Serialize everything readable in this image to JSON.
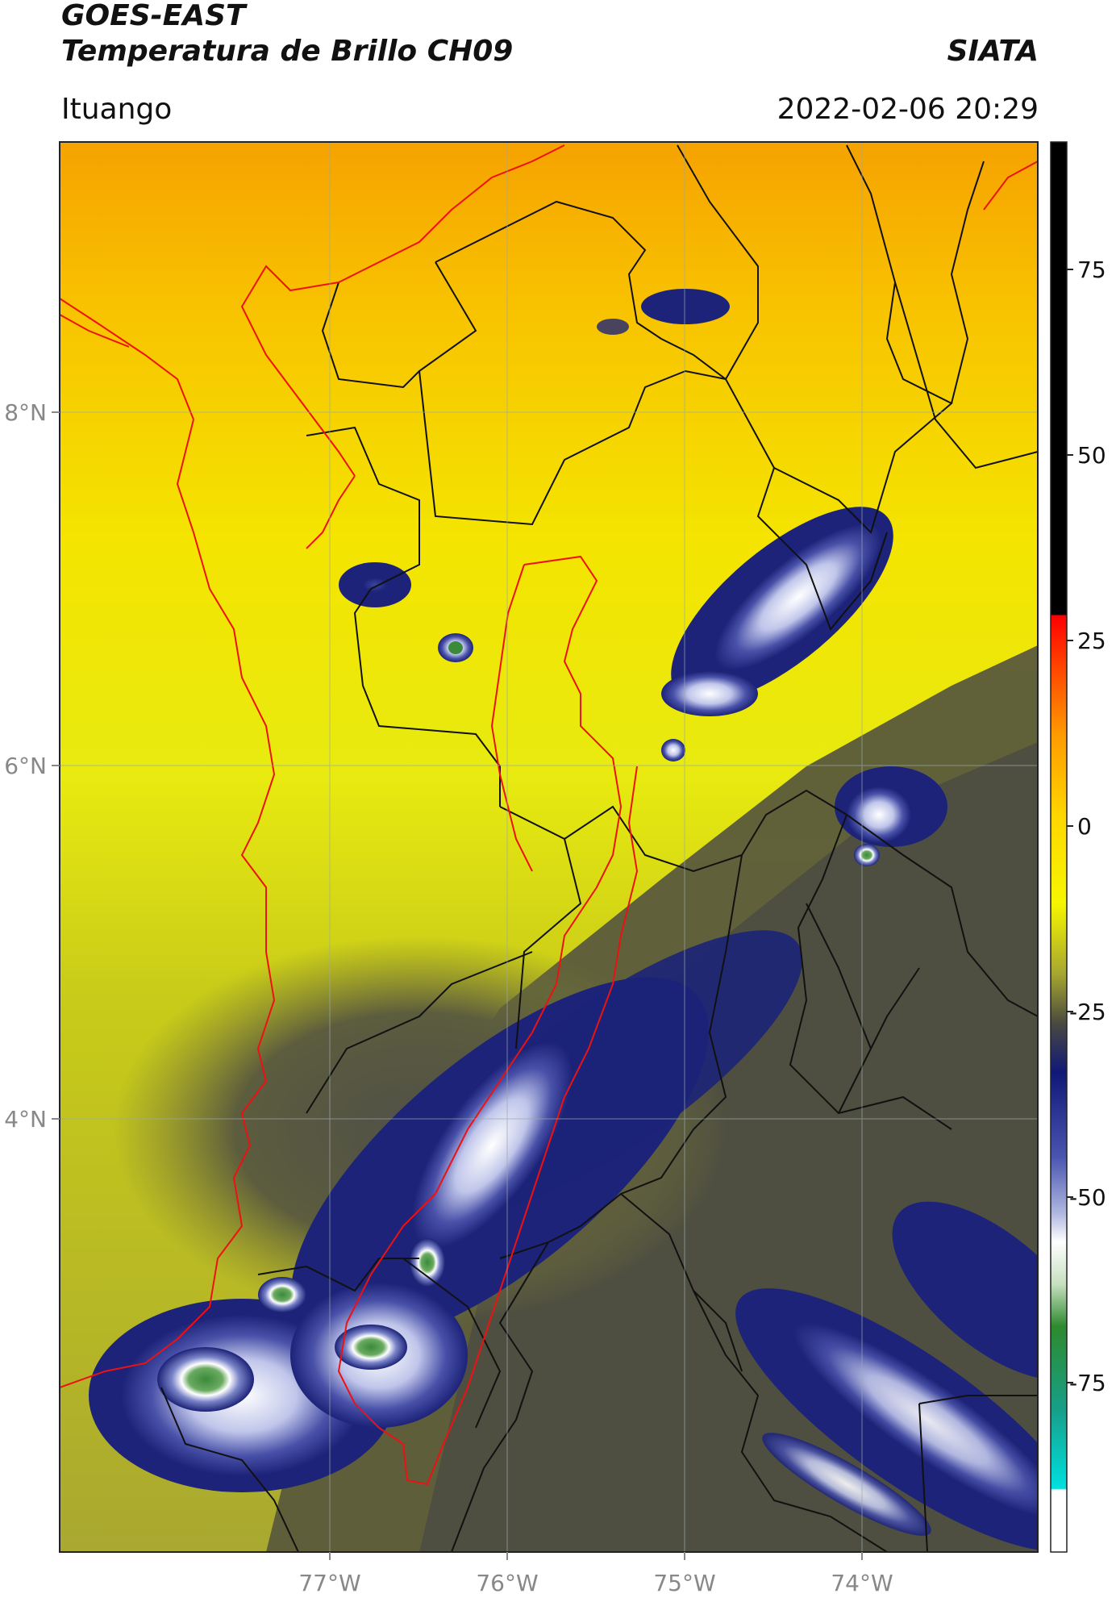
{
  "header": {
    "line1": "GOES-EAST",
    "line2": "Temperatura de Brillo CH09",
    "brand": "SIATA",
    "location": "Ituango",
    "timestamp": "2022-02-06 20:29"
  },
  "map": {
    "lon_range": [
      -78.5,
      -73.1
    ],
    "lat_range": [
      1.5,
      9.5
    ],
    "lon_ticks": [
      {
        "value": -77,
        "label": "77°W"
      },
      {
        "value": -76,
        "label": "76°W"
      },
      {
        "value": -75,
        "label": "75°W"
      },
      {
        "value": -74,
        "label": "74°W"
      }
    ],
    "lat_ticks": [
      {
        "value": 8,
        "label": "8°N"
      },
      {
        "value": 6,
        "label": "6°N"
      },
      {
        "value": 4,
        "label": "4°N"
      }
    ],
    "grid": "on"
  },
  "colorbar": {
    "range": [
      -90,
      90
    ],
    "ticks": [
      {
        "value": 75,
        "label": "75"
      },
      {
        "value": 50,
        "label": "50"
      },
      {
        "value": 25,
        "label": "25"
      },
      {
        "value": 0,
        "label": "0"
      },
      {
        "value": -25,
        "label": "-25"
      },
      {
        "value": -50,
        "label": "-50"
      },
      {
        "value": -75,
        "label": "-75"
      }
    ]
  },
  "colors": {
    "warm": "#f5b000",
    "mild": "#eeee10",
    "cool": "#6a6a30",
    "cold": "#1c2378",
    "very_cold": "#ffffff",
    "coldest": "#3c8a3c",
    "country_border": "#ee1111",
    "admin_border": "#111111"
  }
}
